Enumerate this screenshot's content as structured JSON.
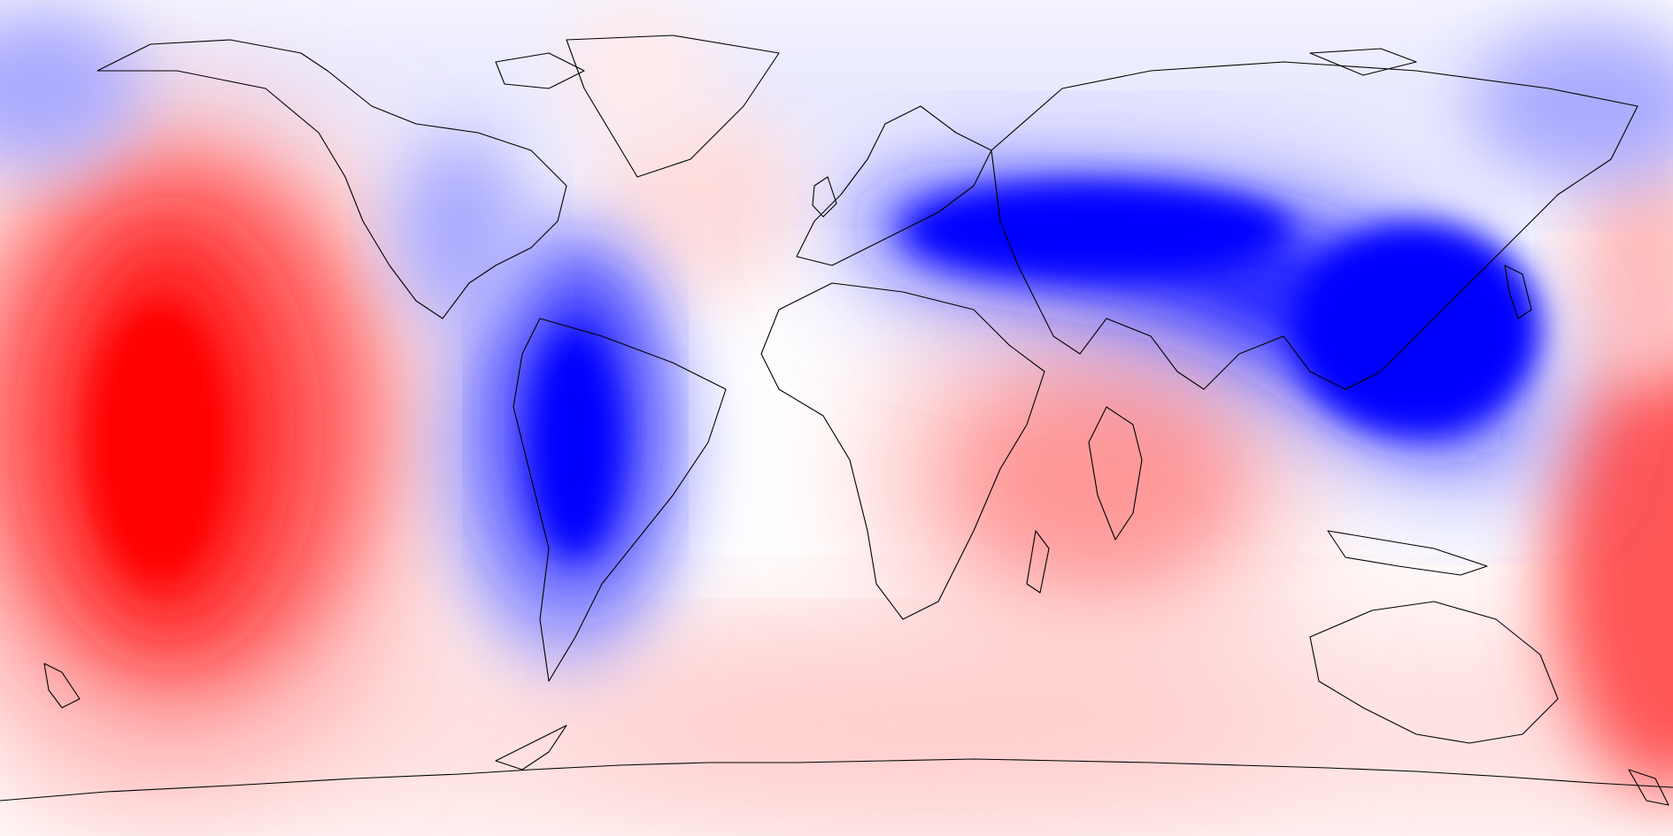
{
  "map": {
    "type": "global-anomaly-contour-map",
    "projection": "equirectangular",
    "lon_range": [
      -180,
      180
    ],
    "lat_range": [
      -90,
      90
    ],
    "central_longitude": 0,
    "coastlines": true,
    "country_borders": true,
    "colormap": "bwr",
    "colors": {
      "strong_negative": "#0000ff",
      "negative": "#8888ff",
      "weak_negative": "#f0f0ff",
      "neutral": "#ffffff",
      "weak_positive": "#fff0f0",
      "positive": "#ff8888",
      "strong_positive": "#ff0000",
      "coastline": "#000000"
    },
    "features": [
      {
        "name": "positive-anomaly-central-pacific",
        "sign": "positive",
        "strength": "strong",
        "center_lon": -150,
        "center_lat": -10
      },
      {
        "name": "negative-anomaly-south-america",
        "sign": "negative",
        "strength": "strong",
        "center_lon": -62,
        "center_lat": -15
      },
      {
        "name": "negative-anomaly-eurasia",
        "sign": "negative",
        "strength": "strong",
        "center_lon": 70,
        "center_lat": 40
      },
      {
        "name": "negative-anomaly-west-pacific",
        "sign": "negative",
        "strength": "strong",
        "center_lon": 140,
        "center_lat": 15
      },
      {
        "name": "positive-anomaly-indian-ocean",
        "sign": "positive",
        "strength": "moderate",
        "center_lon": 65,
        "center_lat": -15
      },
      {
        "name": "positive-anomaly-southern-ocean",
        "sign": "positive",
        "strength": "moderate",
        "center_lon": 170,
        "center_lat": -55
      },
      {
        "name": "positive-anomaly-north-atlantic",
        "sign": "positive",
        "strength": "weak",
        "center_lon": -30,
        "center_lat": 50
      }
    ]
  }
}
